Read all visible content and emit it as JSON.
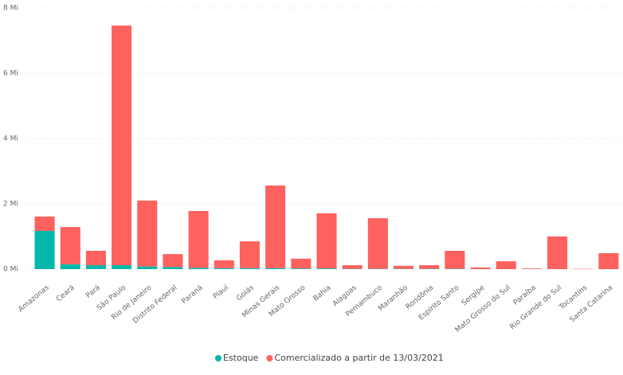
{
  "chart_data": {
    "type": "stacked-bar",
    "categories": [
      "Amazonas",
      "Ceará",
      "Pará",
      "São Paulo",
      "Rio de Janeiro",
      "Distrito Federal",
      "Paraná",
      "Piauí",
      "Goiás",
      "Minas Gerais",
      "Mato Grosso",
      "Bahia",
      "Alagoas",
      "Pernambuco",
      "Maranhão",
      "Rondônia",
      "Espírito Santo",
      "Sergipe",
      "Mato Grosso do Sul",
      "Paraíba",
      "Rio Grande do Sul",
      "Tocantins",
      "Santa Catarina"
    ],
    "series": [
      {
        "name": "Estoque",
        "color": "#01b8aa",
        "values": [
          1.17,
          0.15,
          0.12,
          0.12,
          0.08,
          0.06,
          0.04,
          0.03,
          0.03,
          0.03,
          0.02,
          0.02,
          0.01,
          0.01,
          0.01,
          0.01,
          0.01,
          0,
          0,
          0,
          0,
          0,
          0
        ]
      },
      {
        "name": "Comercializado a partir de 13/03/2021",
        "color": "#fd625e",
        "values": [
          0.44,
          1.14,
          0.44,
          7.34,
          2.02,
          0.4,
          1.74,
          0.24,
          0.82,
          2.53,
          0.3,
          1.69,
          0.11,
          1.55,
          0.09,
          0.11,
          0.55,
          0.05,
          0.24,
          0.02,
          1.0,
          0.01,
          0.49
        ]
      }
    ],
    "ylim": [
      0,
      8
    ],
    "yticks": [
      {
        "value": 0,
        "label": "0 Mi"
      },
      {
        "value": 2,
        "label": "2 Mi"
      },
      {
        "value": 4,
        "label": "4 Mi"
      },
      {
        "value": 6,
        "label": "6 Mi"
      },
      {
        "value": 8,
        "label": "8 Mi"
      }
    ],
    "grid": true,
    "legend": "bottom"
  }
}
